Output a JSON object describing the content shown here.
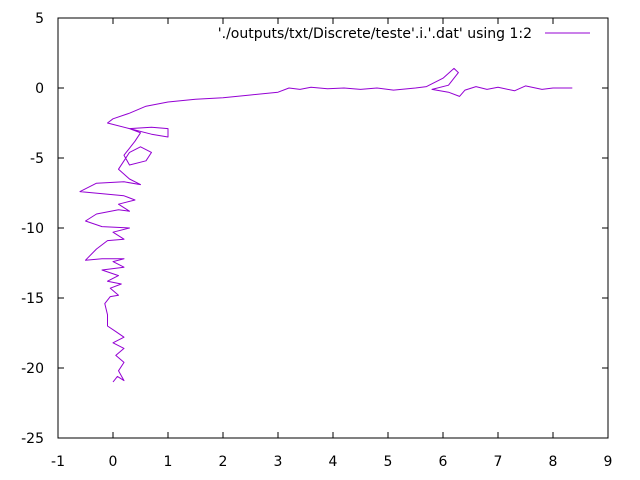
{
  "chart_data": {
    "type": "line",
    "title": "",
    "xlabel": "",
    "ylabel": "",
    "xlim": [
      -1,
      9
    ],
    "ylim": [
      -25,
      5
    ],
    "grid": false,
    "legend_placement": "top-right",
    "x_ticks": [
      -1,
      0,
      1,
      2,
      3,
      4,
      5,
      6,
      7,
      8,
      9
    ],
    "y_ticks": [
      -25,
      -20,
      -15,
      -10,
      -5,
      0,
      5
    ],
    "series": [
      {
        "name": "'./outputs/txt/Discrete/teste'.i.'.dat' using 1:2",
        "color": "#9400d3",
        "points": [
          [
            0.0,
            -21.0
          ],
          [
            0.08,
            -20.6
          ],
          [
            0.2,
            -20.9
          ],
          [
            0.1,
            -20.2
          ],
          [
            0.2,
            -19.6
          ],
          [
            0.05,
            -19.1
          ],
          [
            0.2,
            -18.6
          ],
          [
            0.0,
            -18.2
          ],
          [
            0.2,
            -17.8
          ],
          [
            0.05,
            -17.4
          ],
          [
            -0.1,
            -17.0
          ],
          [
            -0.1,
            -16.2
          ],
          [
            -0.15,
            -15.4
          ],
          [
            -0.05,
            -14.9
          ],
          [
            0.1,
            -14.8
          ],
          [
            -0.05,
            -14.3
          ],
          [
            0.15,
            -14.0
          ],
          [
            -0.1,
            -13.8
          ],
          [
            0.1,
            -13.4
          ],
          [
            -0.2,
            -13.0
          ],
          [
            0.2,
            -12.8
          ],
          [
            0.0,
            -12.4
          ],
          [
            0.2,
            -12.2
          ],
          [
            -0.2,
            -12.2
          ],
          [
            -0.5,
            -12.3
          ],
          [
            -0.3,
            -11.5
          ],
          [
            -0.1,
            -10.9
          ],
          [
            0.2,
            -10.8
          ],
          [
            0.0,
            -10.3
          ],
          [
            0.3,
            -10.0
          ],
          [
            -0.2,
            -9.9
          ],
          [
            -0.5,
            -9.5
          ],
          [
            -0.3,
            -9.0
          ],
          [
            0.1,
            -8.7
          ],
          [
            0.3,
            -8.8
          ],
          [
            0.1,
            -8.3
          ],
          [
            0.4,
            -8.0
          ],
          [
            0.2,
            -7.7
          ],
          [
            -0.6,
            -7.4
          ],
          [
            -0.3,
            -6.8
          ],
          [
            0.2,
            -6.7
          ],
          [
            0.5,
            -6.9
          ],
          [
            0.3,
            -6.5
          ],
          [
            0.1,
            -5.8
          ],
          [
            0.2,
            -5.2
          ],
          [
            0.3,
            -4.6
          ],
          [
            0.5,
            -4.2
          ],
          [
            0.7,
            -4.6
          ],
          [
            0.6,
            -5.2
          ],
          [
            0.3,
            -5.5
          ],
          [
            0.2,
            -4.8
          ],
          [
            0.4,
            -3.8
          ],
          [
            0.5,
            -3.2
          ],
          [
            0.3,
            -2.9
          ],
          [
            0.7,
            -2.8
          ],
          [
            1.0,
            -2.9
          ],
          [
            1.0,
            -3.5
          ],
          [
            0.7,
            -3.3
          ],
          [
            0.3,
            -2.9
          ],
          [
            -0.1,
            -2.5
          ],
          [
            0.0,
            -2.2
          ],
          [
            0.3,
            -1.8
          ],
          [
            0.6,
            -1.3
          ],
          [
            1.0,
            -1.0
          ],
          [
            1.5,
            -0.8
          ],
          [
            2.0,
            -0.7
          ],
          [
            2.5,
            -0.5
          ],
          [
            3.0,
            -0.3
          ],
          [
            3.2,
            0.0
          ],
          [
            3.4,
            -0.1
          ],
          [
            3.6,
            0.05
          ],
          [
            3.9,
            -0.05
          ],
          [
            4.2,
            0.0
          ],
          [
            4.5,
            -0.1
          ],
          [
            4.8,
            0.0
          ],
          [
            5.1,
            -0.15
          ],
          [
            5.5,
            0.0
          ],
          [
            5.7,
            0.1
          ],
          [
            6.0,
            0.7
          ],
          [
            6.2,
            1.4
          ],
          [
            6.28,
            1.1
          ],
          [
            6.1,
            0.2
          ],
          [
            5.8,
            -0.1
          ],
          [
            6.1,
            -0.3
          ],
          [
            6.3,
            -0.6
          ],
          [
            6.4,
            -0.15
          ],
          [
            6.6,
            0.1
          ],
          [
            6.8,
            -0.1
          ],
          [
            7.0,
            0.05
          ],
          [
            7.3,
            -0.2
          ],
          [
            7.5,
            0.15
          ],
          [
            7.8,
            -0.1
          ],
          [
            8.0,
            0.0
          ],
          [
            8.2,
            0.0
          ],
          [
            8.35,
            0.0
          ]
        ]
      }
    ]
  }
}
